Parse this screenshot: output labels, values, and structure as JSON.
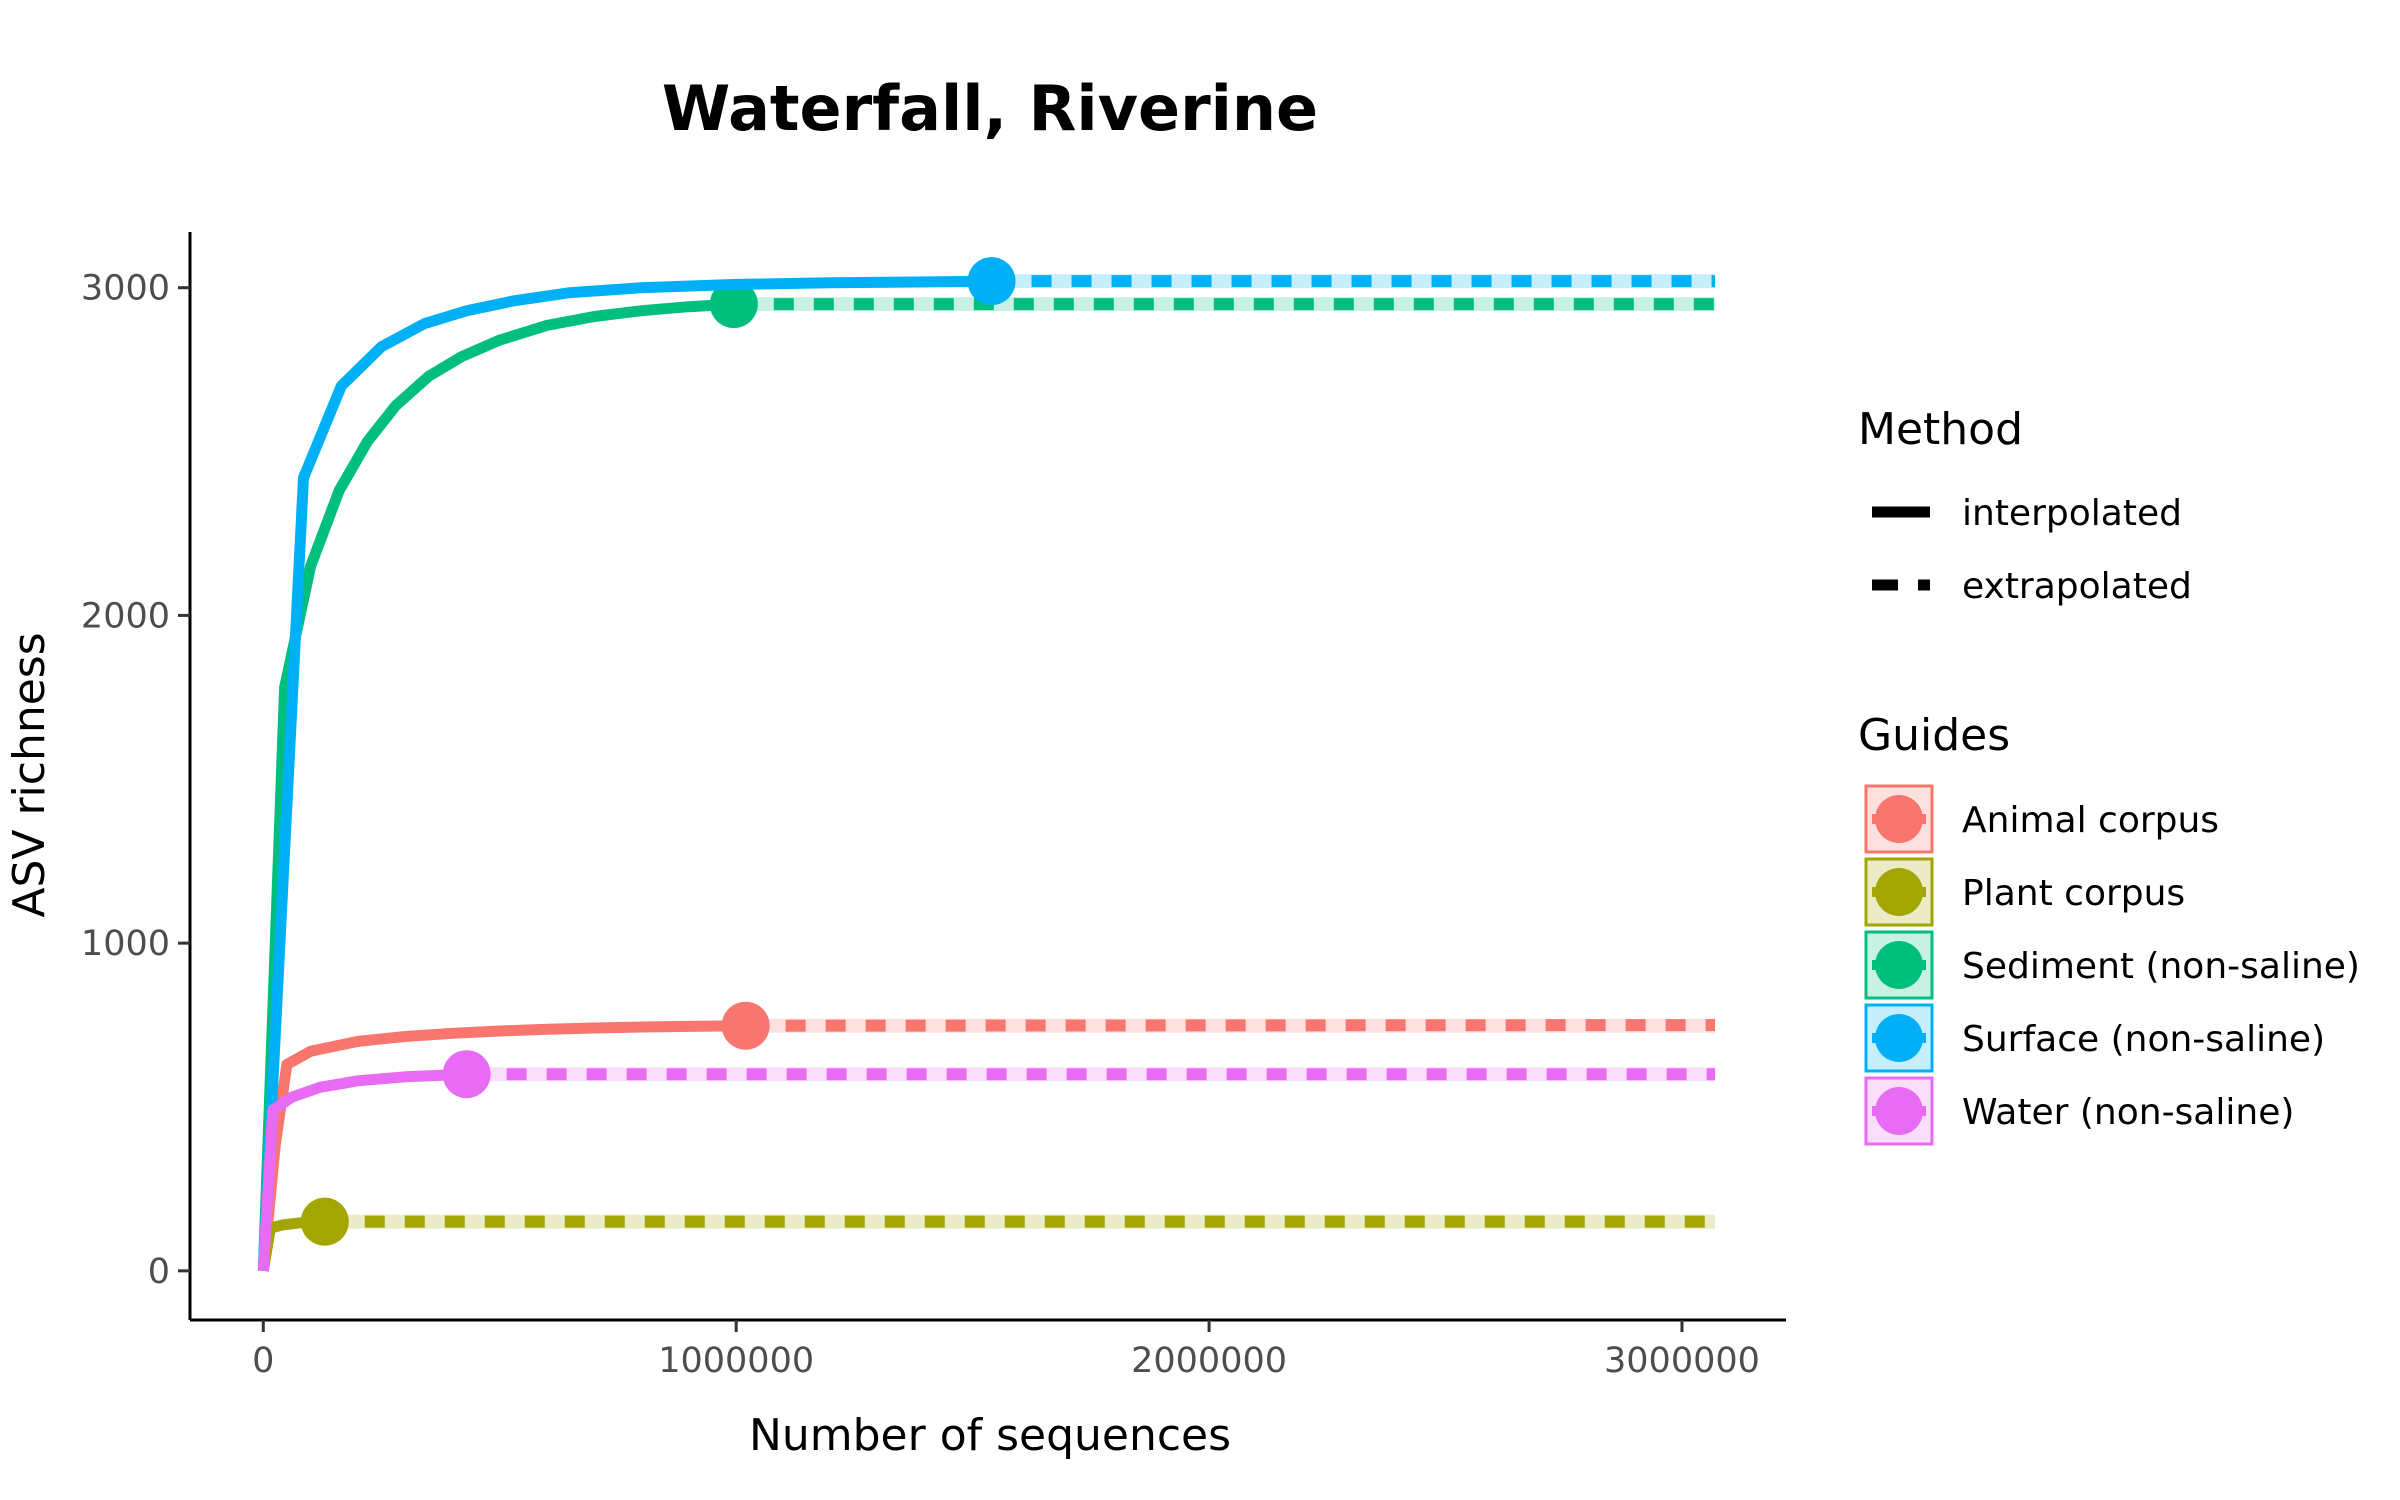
{
  "chart_data": {
    "type": "line",
    "title": "Waterfall, Riverine",
    "xlabel": "Number of sequences",
    "ylabel": "ASV richness",
    "xlim": [
      -155000,
      3220000
    ],
    "ylim": [
      -150,
      3170
    ],
    "x_ticks": [
      0,
      1000000,
      2000000,
      3000000
    ],
    "x_tick_labels": [
      "0",
      "1000000",
      "2000000",
      "3000000"
    ],
    "y_ticks": [
      0,
      1000,
      2000,
      3000
    ],
    "y_tick_labels": [
      "0",
      "1000",
      "2000",
      "3000"
    ],
    "grid": false,
    "legend_placement": "right",
    "legend": {
      "method_title": "Method",
      "methods": [
        {
          "label": "interpolated",
          "style": "solid"
        },
        {
          "label": "extrapolated",
          "style": "dashed"
        }
      ],
      "guides_title": "Guides"
    },
    "series": [
      {
        "name": "Animal corpus",
        "color": "#F8766D",
        "interpolated": [
          [
            0,
            0
          ],
          [
            25000,
            380
          ],
          [
            50000,
            630
          ],
          [
            100000,
            670
          ],
          [
            200000,
            700
          ],
          [
            300000,
            715
          ],
          [
            400000,
            725
          ],
          [
            500000,
            732
          ],
          [
            600000,
            737
          ],
          [
            700000,
            741
          ],
          [
            800000,
            744
          ],
          [
            900000,
            746
          ],
          [
            1020000,
            748
          ]
        ],
        "observed": [
          1020000,
          748
        ],
        "extrapolated_end": [
          3070000,
          750
        ]
      },
      {
        "name": "Plant corpus",
        "color": "#A3A500",
        "interpolated": [
          [
            0,
            0
          ],
          [
            15000,
            130
          ],
          [
            40000,
            140
          ],
          [
            80000,
            147
          ],
          [
            130000,
            150
          ]
        ],
        "observed": [
          130000,
          150
        ],
        "extrapolated_end": [
          3070000,
          150
        ]
      },
      {
        "name": "Sediment (non-saline)",
        "color": "#00BF7D",
        "interpolated": [
          [
            0,
            0
          ],
          [
            45000,
            1780
          ],
          [
            100000,
            2150
          ],
          [
            160000,
            2380
          ],
          [
            220000,
            2530
          ],
          [
            280000,
            2640
          ],
          [
            350000,
            2730
          ],
          [
            420000,
            2790
          ],
          [
            500000,
            2840
          ],
          [
            600000,
            2885
          ],
          [
            700000,
            2912
          ],
          [
            800000,
            2930
          ],
          [
            900000,
            2942
          ],
          [
            995000,
            2950
          ]
        ],
        "observed": [
          995000,
          2950
        ],
        "extrapolated_end": [
          3070000,
          2950
        ]
      },
      {
        "name": "Surface (non-saline)",
        "color": "#00B0F6",
        "interpolated": [
          [
            0,
            0
          ],
          [
            85000,
            2420
          ],
          [
            165000,
            2700
          ],
          [
            250000,
            2820
          ],
          [
            340000,
            2890
          ],
          [
            430000,
            2930
          ],
          [
            530000,
            2960
          ],
          [
            650000,
            2985
          ],
          [
            800000,
            3000
          ],
          [
            1000000,
            3010
          ],
          [
            1200000,
            3015
          ],
          [
            1540000,
            3020
          ]
        ],
        "observed": [
          1540000,
          3020
        ],
        "extrapolated_end": [
          3070000,
          3020
        ]
      },
      {
        "name": "Water (non-saline)",
        "color": "#E76BF3",
        "interpolated": [
          [
            0,
            0
          ],
          [
            20000,
            490
          ],
          [
            60000,
            530
          ],
          [
            120000,
            560
          ],
          [
            200000,
            580
          ],
          [
            300000,
            592
          ],
          [
            430000,
            600
          ]
        ],
        "observed": [
          430000,
          600
        ],
        "extrapolated_end": [
          3070000,
          600
        ]
      }
    ]
  }
}
